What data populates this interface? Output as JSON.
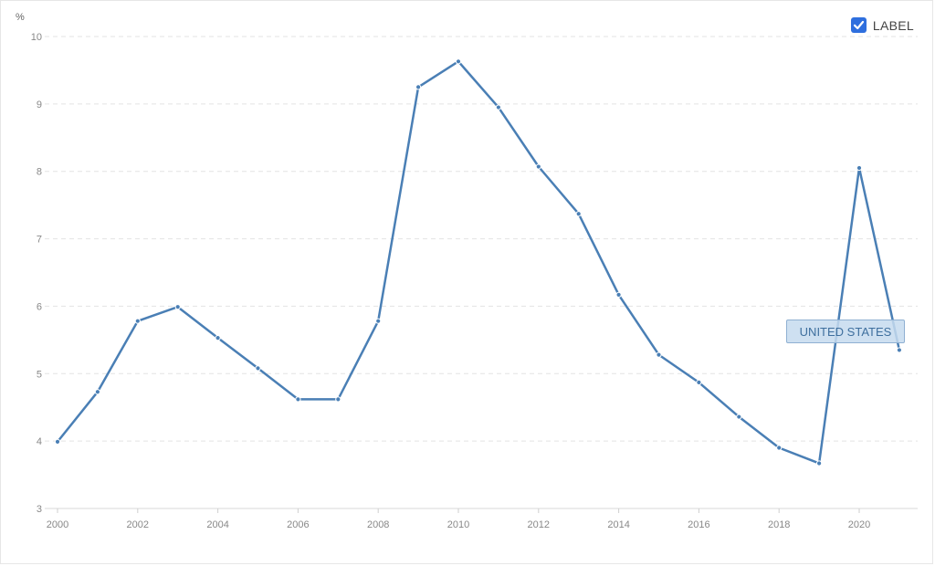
{
  "controls": {
    "label_toggle": {
      "text": "LABEL",
      "checked": true
    },
    "checkbox_color": "#2f6fde"
  },
  "series_label": "UNITED STATES",
  "chart_data": {
    "type": "line",
    "ylabel": "%",
    "ylim": [
      3,
      10
    ],
    "xlim": [
      2000,
      2021
    ],
    "yticks": [
      3,
      4,
      5,
      6,
      7,
      8,
      9,
      10
    ],
    "xticks": [
      2000,
      2002,
      2004,
      2006,
      2008,
      2010,
      2012,
      2014,
      2016,
      2018,
      2020
    ],
    "grid": "horizontal-dashed",
    "series": [
      {
        "name": "UNITED STATES",
        "color": "#4a7fb5",
        "x": [
          2000,
          2001,
          2002,
          2003,
          2004,
          2005,
          2006,
          2007,
          2008,
          2009,
          2010,
          2011,
          2012,
          2013,
          2014,
          2015,
          2016,
          2017,
          2018,
          2019,
          2020,
          2021
        ],
        "y": [
          3.99,
          4.73,
          5.78,
          5.99,
          5.53,
          5.08,
          4.62,
          4.62,
          5.78,
          9.25,
          9.63,
          8.95,
          8.07,
          7.37,
          6.17,
          5.28,
          4.87,
          4.36,
          3.9,
          3.67,
          8.05,
          5.35
        ]
      }
    ]
  }
}
